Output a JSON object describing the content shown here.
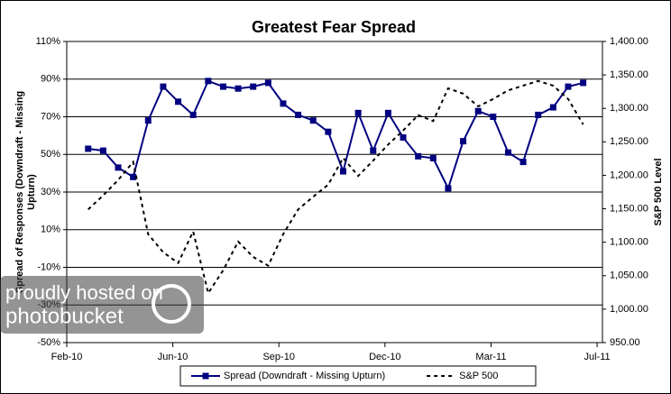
{
  "chart_data": {
    "type": "line",
    "title": "Greatest Fear Spread",
    "y_label_lines": [
      "Spread of Responses (Downdraft - Missing",
      "Upturn)"
    ],
    "y2_label": "S&P 500 Level",
    "annotations": [
      "proudly hosted on",
      "photobucket"
    ],
    "x": [
      20,
      34,
      48,
      62,
      76,
      90,
      104,
      118,
      132,
      146,
      160,
      174,
      188,
      202,
      216,
      230,
      244,
      258,
      272,
      286,
      300,
      314,
      328,
      342,
      356,
      370,
      384,
      398,
      412,
      426,
      440,
      454,
      468,
      482
    ],
    "xlim": [
      0,
      500
    ],
    "xticks": [
      {
        "value": 0,
        "label": "Feb-10"
      },
      {
        "value": 99,
        "label": "Jun-10"
      },
      {
        "value": 198,
        "label": "Sep-10"
      },
      {
        "value": 297,
        "label": "Dec-10"
      },
      {
        "value": 396,
        "label": "Mar-11"
      },
      {
        "value": 495,
        "label": "Jul-11"
      }
    ],
    "ylim": [
      -50,
      110
    ],
    "yticks": [
      {
        "value": -50,
        "label": "-50%"
      },
      {
        "value": -30,
        "label": "-30%"
      },
      {
        "value": -10,
        "label": "-10%"
      },
      {
        "value": 10,
        "label": "10%"
      },
      {
        "value": 30,
        "label": "30%"
      },
      {
        "value": 50,
        "label": "50%"
      },
      {
        "value": 70,
        "label": "70%"
      },
      {
        "value": 90,
        "label": "90%"
      },
      {
        "value": 110,
        "label": "110%"
      }
    ],
    "y2lim": [
      950,
      1400
    ],
    "y2ticks": [
      {
        "value": 950,
        "label": "950.00"
      },
      {
        "value": 1000,
        "label": "1,000.00"
      },
      {
        "value": 1050,
        "label": "1,050.00"
      },
      {
        "value": 1100,
        "label": "1,100.00"
      },
      {
        "value": 1150,
        "label": "1,150.00"
      },
      {
        "value": 1200,
        "label": "1,200.00"
      },
      {
        "value": 1250,
        "label": "1,250.00"
      },
      {
        "value": 1300,
        "label": "1,300.00"
      },
      {
        "value": 1350,
        "label": "1,350.00"
      },
      {
        "value": 1400,
        "label": "1,400.00"
      }
    ],
    "grid": true,
    "legend": "bottom",
    "series": [
      {
        "name": "Spread (Downdraft - Missing Upturn)",
        "color": "#000080",
        "marker": "square",
        "values": [
          53,
          52,
          43,
          38,
          68,
          86,
          78,
          71,
          89,
          86,
          85,
          86,
          88,
          77,
          71,
          68,
          62,
          41,
          72,
          52,
          72,
          59,
          49,
          48,
          32,
          57,
          73,
          70,
          51,
          46,
          71,
          75,
          86,
          88
        ]
      },
      {
        "name": "S&P 500",
        "color": "#000000",
        "dash": true,
        "axis": "y2",
        "values": [
          1149,
          1170,
          1193,
          1220,
          1112,
          1085,
          1069,
          1116,
          1024,
          1058,
          1101,
          1078,
          1065,
          1112,
          1149,
          1168,
          1186,
          1226,
          1199,
          1222,
          1246,
          1267,
          1290,
          1281,
          1330,
          1322,
          1303,
          1314,
          1327,
          1334,
          1341,
          1334,
          1314,
          1276
        ]
      }
    ]
  }
}
